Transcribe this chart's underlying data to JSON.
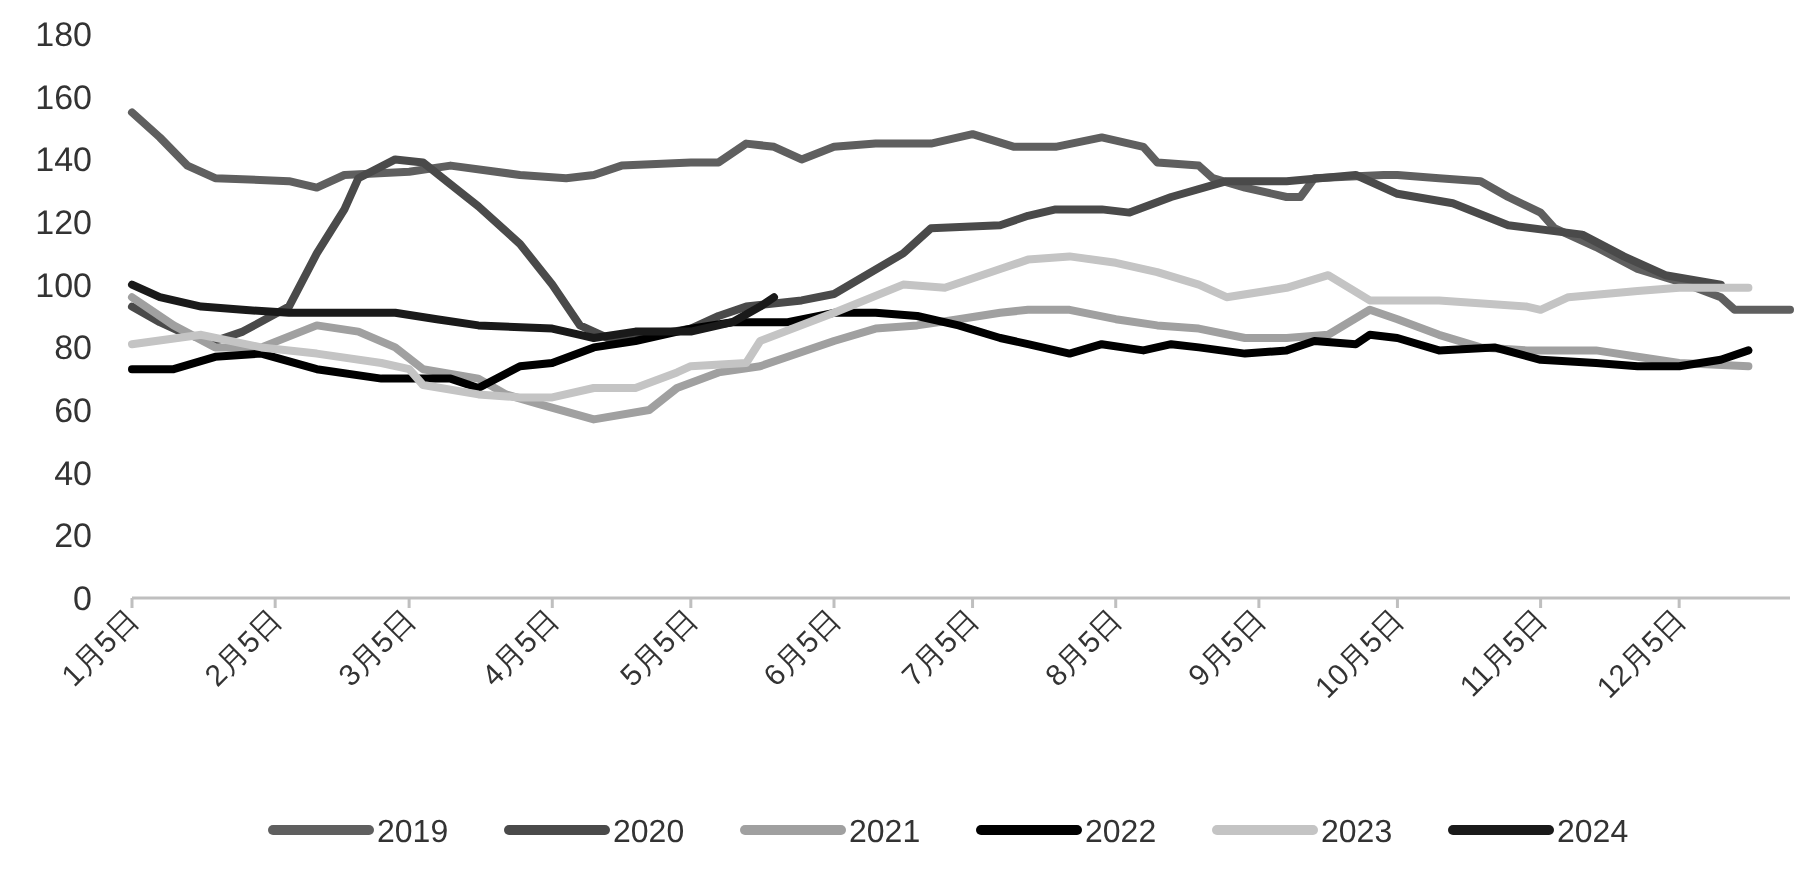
{
  "chart_data": {
    "type": "line",
    "legend": "bottom",
    "xlim": [
      "--01-05",
      "--12-29"
    ],
    "xticks": [
      {
        "value": "--01-05",
        "label": "1月5日"
      },
      {
        "value": "--02-05",
        "label": "2月5日"
      },
      {
        "value": "--03-05",
        "label": "3月5日"
      },
      {
        "value": "--04-05",
        "label": "4月5日"
      },
      {
        "value": "--05-05",
        "label": "5月5日"
      },
      {
        "value": "--06-05",
        "label": "6月5日"
      },
      {
        "value": "--07-05",
        "label": "7月5日"
      },
      {
        "value": "--08-05",
        "label": "8月5日"
      },
      {
        "value": "--09-05",
        "label": "9月5日"
      },
      {
        "value": "--10-05",
        "label": "10月5日"
      },
      {
        "value": "--11-05",
        "label": "11月5日"
      },
      {
        "value": "--12-05",
        "label": "12月5日"
      }
    ],
    "ylim": [
      0,
      180
    ],
    "yticks": [
      0,
      20,
      40,
      60,
      80,
      100,
      120,
      140,
      160,
      180
    ],
    "series": [
      {
        "name": "2019",
        "color": "#5f5f5f",
        "x": [
          "--01-05",
          "--01-11",
          "--01-17",
          "--01-23",
          "--02-08",
          "--02-14",
          "--02-20",
          "--03-05",
          "--03-14",
          "--03-29",
          "--04-08",
          "--04-14",
          "--04-20",
          "--05-05",
          "--05-11",
          "--05-17",
          "--05-23",
          "--05-29",
          "--06-05",
          "--06-14",
          "--06-26",
          "--07-05",
          "--07-14",
          "--07-23",
          "--08-02",
          "--08-11",
          "--08-14",
          "--08-23",
          "--08-26",
          "--09-02",
          "--09-11",
          "--09-14",
          "--09-17",
          "--10-02",
          "--10-05",
          "--10-14",
          "--10-23",
          "--10-29",
          "--11-05",
          "--11-08",
          "--11-17",
          "--11-26",
          "--12-05",
          "--12-14",
          "--12-17",
          "--12-29"
        ],
        "values": [
          155,
          147,
          138,
          134,
          133,
          131,
          135,
          136,
          138,
          135,
          134,
          135,
          138,
          139,
          139,
          145,
          144,
          140,
          144,
          145,
          145,
          148,
          144,
          144,
          147,
          144,
          139,
          138,
          134,
          131,
          128,
          128,
          134,
          135,
          135,
          134,
          133,
          128,
          123,
          118,
          112,
          105,
          101,
          96,
          92,
          92
        ]
      },
      {
        "name": "2020",
        "color": "#4a4a4a",
        "x": [
          "--01-05",
          "--01-11",
          "--01-17",
          "--01-23",
          "--01-29",
          "--02-08",
          "--02-14",
          "--02-20",
          "--02-23",
          "--03-02",
          "--03-08",
          "--03-14",
          "--03-20",
          "--03-29",
          "--04-05",
          "--04-11",
          "--04-17",
          "--04-23",
          "--05-05",
          "--05-11",
          "--05-17",
          "--05-29",
          "--06-05",
          "--06-20",
          "--06-26",
          "--07-11",
          "--07-17",
          "--07-23",
          "--08-02",
          "--08-08",
          "--08-17",
          "--08-29",
          "--09-11",
          "--09-26",
          "--10-05",
          "--10-17",
          "--10-29",
          "--11-14",
          "--11-23",
          "--12-02",
          "--12-14"
        ],
        "values": [
          93,
          88,
          84,
          82,
          85,
          93,
          110,
          124,
          134,
          140,
          139,
          132,
          125,
          113,
          100,
          87,
          83,
          83,
          86,
          90,
          93,
          95,
          97,
          110,
          118,
          119,
          122,
          124,
          124,
          123,
          128,
          133,
          133,
          135,
          129,
          126,
          119,
          116,
          109,
          103,
          100
        ]
      },
      {
        "name": "2021",
        "color": "#a0a0a0",
        "x": [
          "--01-05",
          "--01-14",
          "--01-23",
          "--02-02",
          "--02-14",
          "--02-23",
          "--03-02",
          "--03-08",
          "--03-20",
          "--03-26",
          "--04-02",
          "--04-14",
          "--04-26",
          "--05-02",
          "--05-11",
          "--05-20",
          "--05-26",
          "--06-05",
          "--06-14",
          "--06-23",
          "--07-02",
          "--07-11",
          "--07-17",
          "--07-26",
          "--08-05",
          "--08-14",
          "--08-23",
          "--09-02",
          "--09-11",
          "--09-20",
          "--09-29",
          "--10-05",
          "--10-14",
          "--10-23",
          "--11-02",
          "--11-08",
          "--11-17",
          "--11-26",
          "--12-05",
          "--12-20"
        ],
        "values": [
          96,
          87,
          80,
          80,
          87,
          85,
          80,
          73,
          70,
          65,
          62,
          57,
          60,
          67,
          72,
          74,
          77,
          82,
          86,
          87,
          89,
          91,
          92,
          92,
          89,
          87,
          86,
          83,
          83,
          84,
          92,
          89,
          84,
          80,
          79,
          79,
          79,
          77,
          75,
          74
        ]
      },
      {
        "name": "2022",
        "color": "#000000",
        "x": [
          "--01-05",
          "--01-14",
          "--01-23",
          "--02-02",
          "--02-14",
          "--02-28",
          "--03-08",
          "--03-14",
          "--03-20",
          "--03-29",
          "--04-05",
          "--04-14",
          "--04-23",
          "--05-05",
          "--05-14",
          "--05-26",
          "--06-05",
          "--06-14",
          "--06-23",
          "--07-02",
          "--07-11",
          "--07-17",
          "--07-26",
          "--08-02",
          "--08-11",
          "--08-17",
          "--08-23",
          "--09-02",
          "--09-11",
          "--09-17",
          "--09-26",
          "--09-29",
          "--10-05",
          "--10-14",
          "--10-26",
          "--11-05",
          "--11-17",
          "--11-26",
          "--12-05",
          "--12-14",
          "--12-20"
        ],
        "values": [
          73,
          73,
          77,
          78,
          73,
          70,
          70,
          70,
          67,
          74,
          75,
          80,
          82,
          86,
          88,
          88,
          91,
          91,
          90,
          87,
          83,
          81,
          78,
          81,
          79,
          81,
          80,
          78,
          79,
          82,
          81,
          84,
          83,
          79,
          80,
          76,
          75,
          74,
          74,
          76,
          79
        ]
      },
      {
        "name": "2023",
        "color": "#c4c4c4",
        "x": [
          "--01-05",
          "--01-20",
          "--02-02",
          "--02-14",
          "--02-28",
          "--03-05",
          "--03-08",
          "--03-20",
          "--03-29",
          "--04-05",
          "--04-14",
          "--04-23",
          "--05-02",
          "--05-05",
          "--05-17",
          "--05-20",
          "--06-05",
          "--06-20",
          "--06-29",
          "--07-11",
          "--07-17",
          "--07-26",
          "--08-05",
          "--08-14",
          "--08-23",
          "--08-29",
          "--09-11",
          "--09-20",
          "--09-29",
          "--10-14",
          "--11-02",
          "--11-05",
          "--11-11",
          "--11-26",
          "--12-05",
          "--12-14",
          "--12-20"
        ],
        "values": [
          81,
          84,
          80,
          78,
          75,
          73,
          68,
          65,
          64,
          64,
          67,
          67,
          72,
          74,
          75,
          82,
          91,
          100,
          99,
          105,
          108,
          109,
          107,
          104,
          100,
          96,
          99,
          103,
          95,
          95,
          93,
          92,
          96,
          98,
          99,
          99,
          99
        ]
      },
      {
        "name": "2024",
        "color": "#1a1a1a",
        "x": [
          "--01-05",
          "--01-11",
          "--01-20",
          "--01-29",
          "--02-08",
          "--02-20",
          "--03-02",
          "--03-11",
          "--03-20",
          "--04-05",
          "--04-11",
          "--04-14",
          "--04-23",
          "--05-05",
          "--05-14",
          "--05-20",
          "--05-23"
        ],
        "values": [
          100,
          96,
          93,
          92,
          91,
          91,
          91,
          89,
          87,
          86,
          84,
          83,
          85,
          85,
          88,
          93,
          96
        ]
      }
    ]
  }
}
